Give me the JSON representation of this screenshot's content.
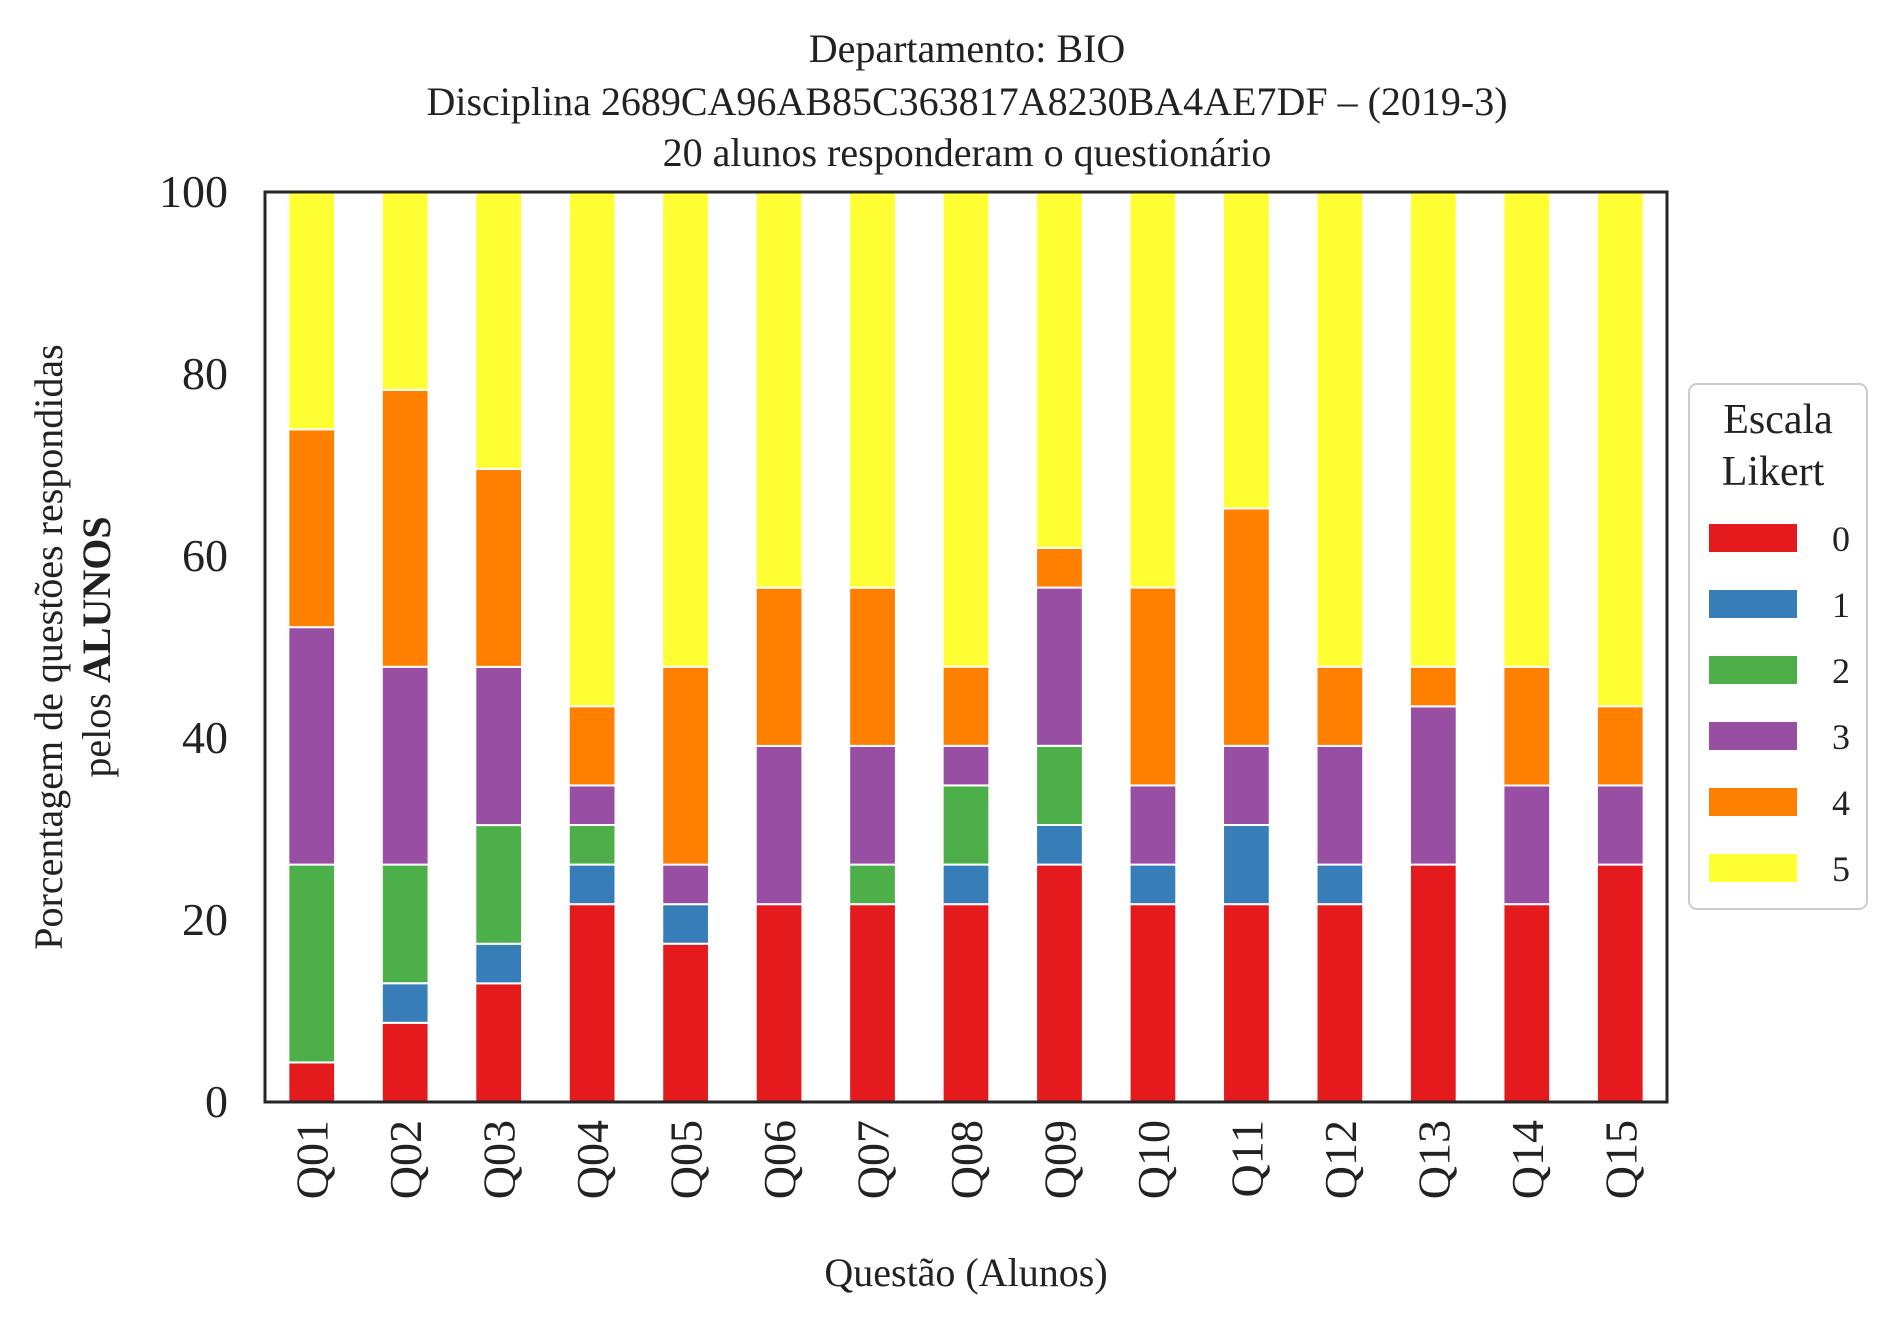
{
  "chart_data": {
    "type": "bar",
    "stacked": true,
    "title_lines": [
      "Departamento: BIO",
      "Disciplina 2689CA96AB85C363817A8230BA4AE7DF – (2019-3)",
      "20 alunos responderam o questionário"
    ],
    "xlabel": "Questão (Alunos)",
    "ylabel_line1": "Porcentagem de questões respondidas",
    "ylabel_line2_prefix": "pelos ",
    "ylabel_line2_bold": "ALUNOS",
    "ylim": [
      0,
      100
    ],
    "yticks": [
      0,
      20,
      40,
      60,
      80,
      100
    ],
    "grid": false,
    "legend_title_lines": [
      "Escala",
      "Likert"
    ],
    "legend_position": "center-right, outside plot",
    "categories": [
      "Q01",
      "Q02",
      "Q03",
      "Q04",
      "Q05",
      "Q06",
      "Q07",
      "Q08",
      "Q09",
      "Q10",
      "Q11",
      "Q12",
      "Q13",
      "Q14",
      "Q15"
    ],
    "series": [
      {
        "name": "0",
        "color": "#e41a1c",
        "values": [
          4.35,
          8.7,
          13.04,
          21.74,
          17.39,
          21.74,
          21.74,
          21.74,
          26.09,
          21.74,
          21.74,
          21.74,
          26.09,
          21.74,
          26.09
        ]
      },
      {
        "name": "1",
        "color": "#377eb8",
        "values": [
          0,
          4.35,
          4.35,
          4.35,
          4.35,
          0,
          0,
          4.35,
          4.35,
          4.35,
          8.7,
          4.35,
          0,
          0,
          0
        ]
      },
      {
        "name": "2",
        "color": "#4daf4a",
        "values": [
          21.74,
          13.04,
          13.04,
          4.35,
          0,
          0,
          4.35,
          8.7,
          8.7,
          0,
          0,
          0,
          0,
          0,
          0
        ]
      },
      {
        "name": "3",
        "color": "#984ea3",
        "values": [
          26.09,
          21.74,
          17.39,
          4.35,
          4.35,
          17.39,
          13.04,
          4.35,
          17.39,
          8.7,
          8.7,
          13.04,
          17.39,
          13.04,
          8.7
        ]
      },
      {
        "name": "4",
        "color": "#ff7f00",
        "values": [
          21.74,
          30.43,
          21.74,
          8.7,
          21.74,
          17.39,
          17.39,
          8.7,
          4.35,
          21.74,
          26.09,
          8.7,
          4.35,
          13.04,
          8.7
        ]
      },
      {
        "name": "5",
        "color": "#ffff33",
        "values": [
          26.09,
          21.74,
          30.43,
          56.52,
          52.17,
          43.48,
          43.48,
          52.17,
          39.13,
          43.48,
          34.78,
          52.17,
          52.17,
          52.17,
          56.52
        ]
      }
    ]
  }
}
